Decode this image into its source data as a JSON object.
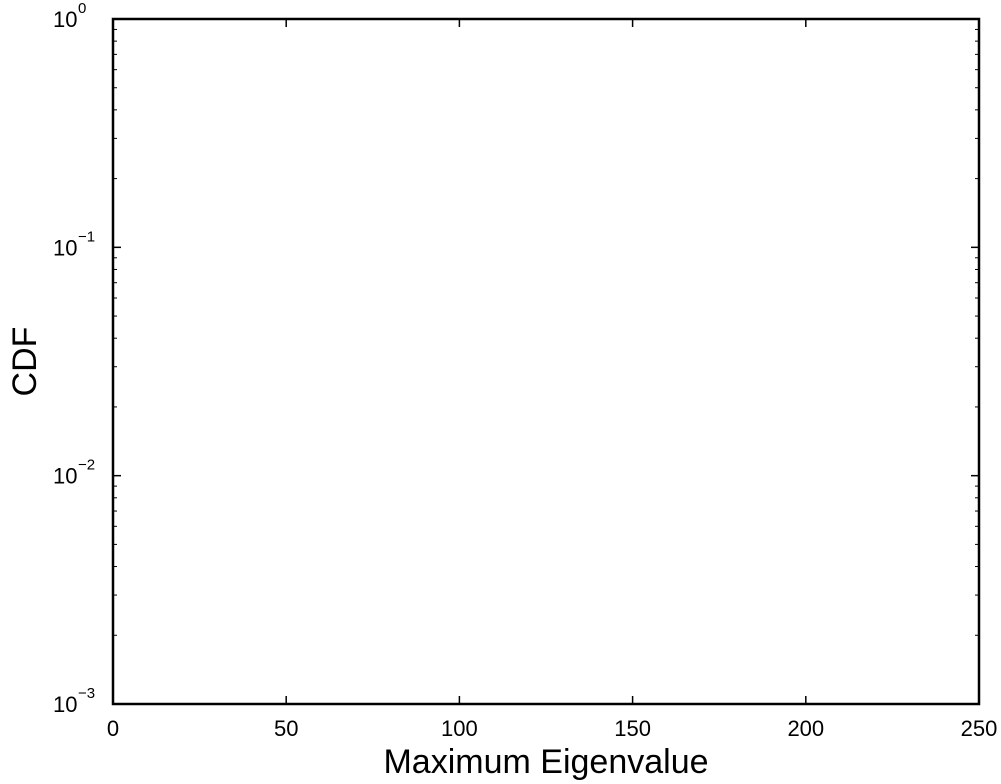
{
  "chart_data": {
    "type": "line",
    "title": "",
    "xlabel": "Maximum Eigenvalue",
    "ylabel": "CDF",
    "xlim": [
      0,
      250
    ],
    "ylim": [
      0.001,
      1
    ],
    "yscale": "log",
    "grid": false,
    "legend": "none",
    "series": [],
    "x_ticks": [
      {
        "value": 0,
        "label": "0"
      },
      {
        "value": 50,
        "label": "50"
      },
      {
        "value": 100,
        "label": "100"
      },
      {
        "value": 150,
        "label": "150"
      },
      {
        "value": 200,
        "label": "200"
      },
      {
        "value": 250,
        "label": "250"
      }
    ],
    "y_ticks": [
      {
        "value": 1,
        "base": "10",
        "exp": "0"
      },
      {
        "value": 0.1,
        "base": "10",
        "exp": "−1"
      },
      {
        "value": 0.01,
        "base": "10",
        "exp": "−2"
      },
      {
        "value": 0.001,
        "base": "10",
        "exp": "−3"
      }
    ],
    "colors": {
      "axes": "#000000",
      "background": "#ffffff"
    }
  }
}
